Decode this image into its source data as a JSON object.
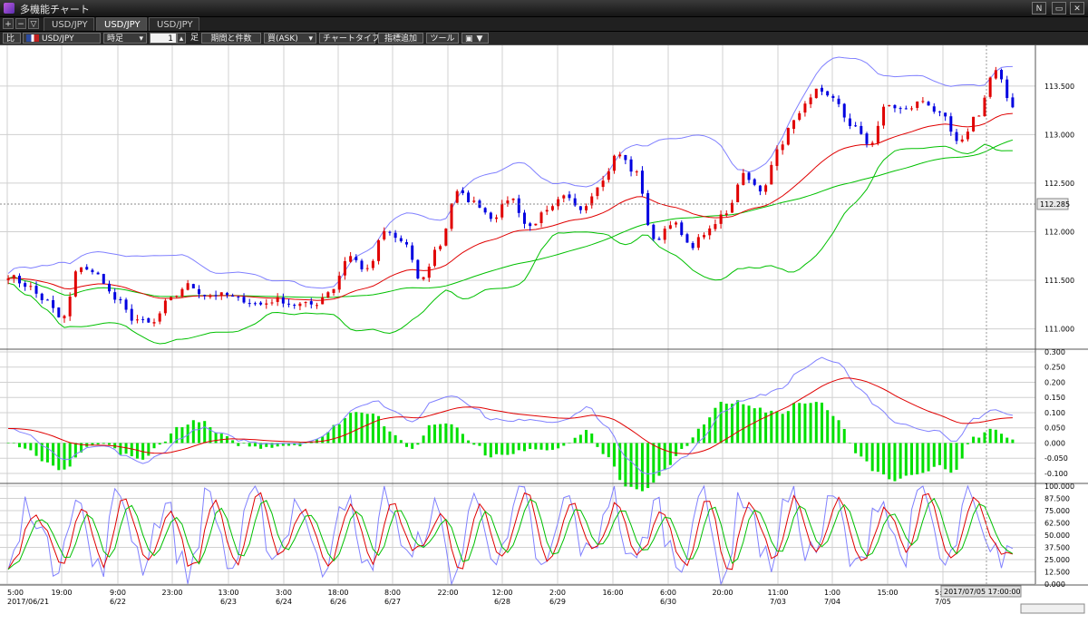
{
  "window": {
    "title": "多機能チャート"
  },
  "window_buttons": [
    "N",
    "▭",
    "✕"
  ],
  "tabbar": {
    "buttons": [
      "+",
      "−",
      "▽"
    ],
    "tabs": [
      {
        "label": "USD/JPY",
        "active": false
      },
      {
        "label": "USD/JPY",
        "active": true
      },
      {
        "label": "USD/JPY",
        "active": false
      }
    ]
  },
  "toolbar": {
    "compare": "比",
    "symbol": "USD/JPY",
    "timeframe": "時足",
    "period_value": "1",
    "period_unit": "足",
    "period_button": "期間と件数",
    "price_side": "買(ASK)",
    "chart_type": "チャートタイプ",
    "indicator_add": "指標追加",
    "tools": "ツール"
  },
  "colors": {
    "up_candle": "#e00000",
    "down_candle": "#0000e0",
    "bollinger": "#8080ff",
    "ma_short": "#e00000",
    "ma_long": "#00c000",
    "histogram": "#00e000",
    "grid": "#d0d0d0"
  },
  "chart_data": [
    {
      "type": "candlestick",
      "indicators": [
        "bollinger",
        "moving-average-short",
        "moving-average-long"
      ],
      "ylim": [
        110.8,
        113.9
      ],
      "yticks": [
        "113.500",
        "113.000",
        "112.500",
        "112.000",
        "111.500",
        "111.000"
      ],
      "current_price_label": "112.285",
      "ohlc_anchor_closes": [
        111.55,
        111.45,
        111.3,
        111.1,
        111.65,
        111.55,
        111.3,
        111.1,
        111.05,
        111.3,
        111.45,
        111.35,
        111.35,
        111.3,
        111.25,
        111.3,
        111.25,
        111.25,
        111.4,
        111.75,
        111.6,
        112.0,
        111.9,
        111.5,
        111.85,
        112.4,
        112.3,
        112.15,
        112.35,
        112.05,
        112.2,
        112.35,
        112.25,
        112.5,
        112.8,
        112.6,
        111.9,
        112.1,
        111.85,
        112.0,
        112.2,
        112.6,
        112.4,
        112.9,
        113.2,
        113.45,
        113.35,
        113.1,
        112.9,
        113.3,
        113.25,
        113.35,
        113.2,
        112.9,
        113.2,
        113.65,
        113.3
      ]
    },
    {
      "type": "macd",
      "ylim": [
        -0.13,
        0.3
      ],
      "yticks": [
        "0.300",
        "0.250",
        "0.200",
        "0.150",
        "0.100",
        "0.050",
        "0.000",
        "-0.050",
        "-0.100"
      ],
      "macd_anchors": [
        0.05,
        0.03,
        -0.02,
        -0.06,
        -0.02,
        -0.01,
        -0.04,
        -0.07,
        -0.03,
        0.02,
        0.05,
        0.03,
        0.01,
        0.0,
        0.0,
        0.0,
        0.01,
        0.06,
        0.12,
        0.14,
        0.1,
        0.07,
        0.14,
        0.16,
        0.12,
        0.08,
        0.07,
        0.08,
        0.07,
        0.08,
        0.12,
        0.05,
        -0.05,
        -0.1,
        -0.09,
        -0.05,
        0.02,
        0.1,
        0.14,
        0.16,
        0.18,
        0.24,
        0.28,
        0.26,
        0.18,
        0.12,
        0.07,
        0.05,
        0.04,
        0.0,
        0.08,
        0.11,
        0.09
      ]
    },
    {
      "type": "stochastic",
      "ylim": [
        0,
        100
      ],
      "yticks": [
        "100.000",
        "87.500",
        "75.000",
        "62.500",
        "50.000",
        "37.500",
        "25.000",
        "12.500",
        "0.000"
      ],
      "cycle_anchors": [
        15,
        85,
        20,
        88,
        12,
        92,
        25,
        80,
        10,
        90,
        15,
        85,
        30,
        88,
        12,
        95,
        10,
        92,
        20,
        75,
        12,
        90,
        20,
        88,
        10,
        85,
        25,
        95,
        15,
        80,
        20,
        92,
        10,
        95,
        20,
        88,
        30,
        85,
        10,
        92,
        30,
        90,
        12,
        85,
        25,
        40
      ]
    }
  ],
  "x_axis": {
    "time_ticks": [
      "5:00",
      "19:00",
      "9:00",
      "23:00",
      "13:00",
      "3:00",
      "18:00",
      "8:00",
      "22:00",
      "12:00",
      "2:00",
      "16:00",
      "6:00",
      "20:00",
      "11:00",
      "1:00",
      "15:00",
      "5:00"
    ],
    "date_ticks": [
      "2017/06/21",
      "6/22",
      "6/23",
      "6/24",
      "6/26",
      "6/27",
      "6/28",
      "6/29",
      "6/30",
      "7/03",
      "7/04",
      "7/05"
    ],
    "cursor_label": "2017/07/05 17:00:00"
  }
}
